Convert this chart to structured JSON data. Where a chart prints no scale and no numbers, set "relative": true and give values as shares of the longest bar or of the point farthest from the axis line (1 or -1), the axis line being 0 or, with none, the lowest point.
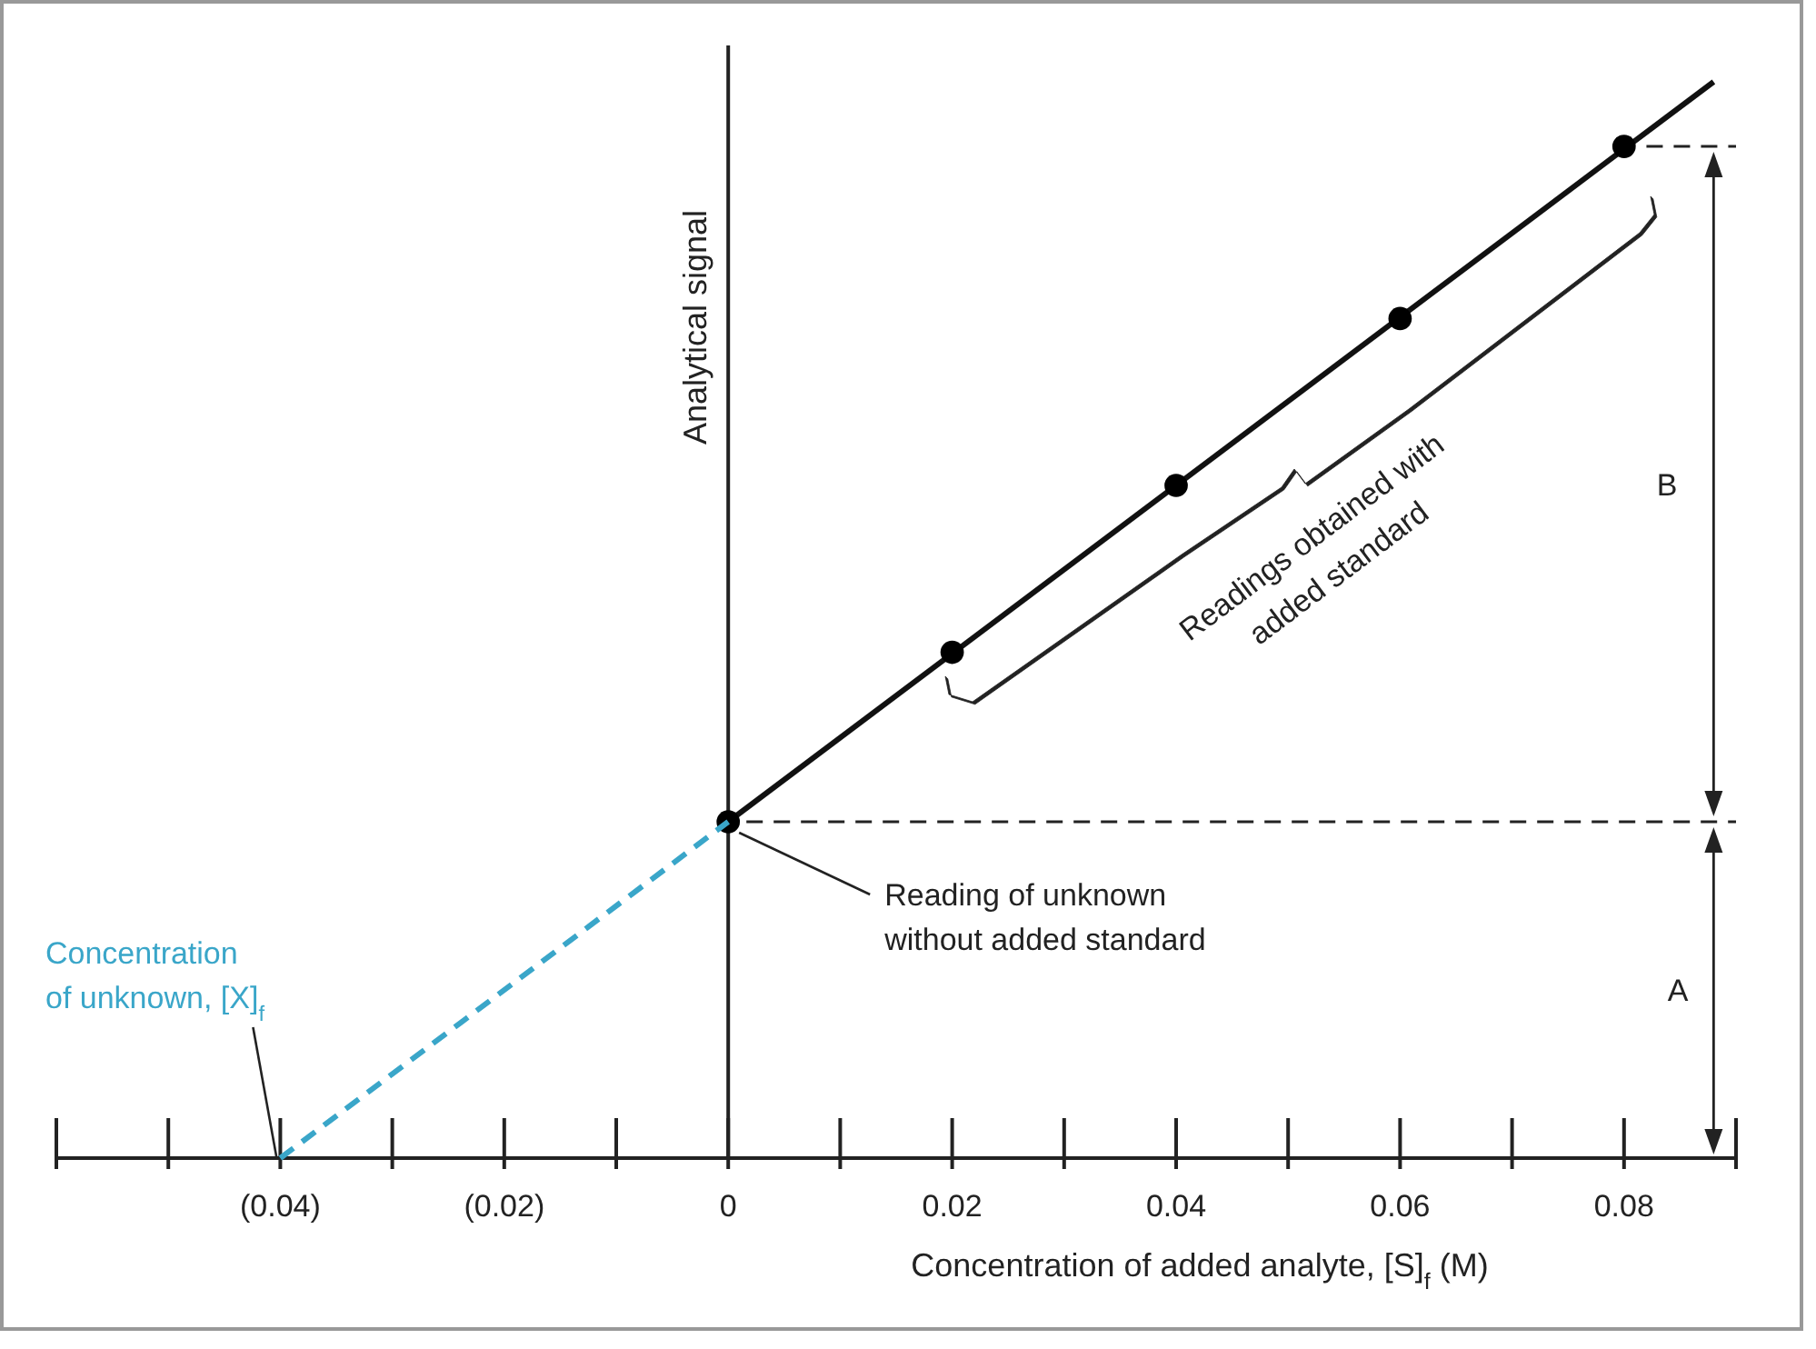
{
  "chart_data": {
    "type": "line",
    "relative": true,
    "xlabel": "Concentration of added analyte, [S]$_{f}$ (M)",
    "ylabel": "Analytical signal",
    "xlim": [
      -0.06,
      0.09
    ],
    "xticks": [
      {
        "value": -0.06,
        "label": null
      },
      {
        "value": -0.05,
        "label": null
      },
      {
        "value": -0.04,
        "label": "(0.04)"
      },
      {
        "value": -0.03,
        "label": null
      },
      {
        "value": -0.02,
        "label": "(0.02)"
      },
      {
        "value": -0.01,
        "label": null
      },
      0,
      {
        "value": 0.01,
        "label": null
      },
      0.02,
      {
        "value": 0.03,
        "label": null
      },
      0.04,
      {
        "value": 0.05,
        "label": null
      },
      0.06,
      {
        "value": 0.07,
        "label": null
      },
      0.08,
      {
        "value": 0.09,
        "label": null
      }
    ],
    "series": [
      {
        "color": "#111111",
        "line_style": "solid",
        "x": [
          0,
          0.088
        ],
        "values": [
          0.3125,
          1
        ]
      },
      {
        "type": "scatter",
        "color": "#000000",
        "marker": "circle",
        "x": [
          0,
          0.02,
          0.04,
          0.06,
          0.08
        ],
        "values": [
          0.3125,
          0.47,
          0.625,
          0.78,
          0.94
        ]
      },
      {
        "color": "#3aa6c9",
        "line_style": "dashed",
        "x": [
          -0.04,
          0
        ],
        "values": [
          0,
          0.3125
        ]
      },
      {
        "color": "#222222",
        "line_style": "dashed",
        "x": [
          0.082,
          0.09
        ],
        "values": [
          0.94,
          0.94
        ]
      }
    ],
    "ref_lines": [
      {
        "axis": "y",
        "value": 0.3125,
        "color": "#222222",
        "line_style": "dashed"
      }
    ],
    "annotations": [
      {
        "text": "Reading of unknown\nwithout added standard",
        "x": 0,
        "y": 0.3125
      },
      {
        "text": "Concentration\nof unknown, [X]$_{f}$",
        "x": -0.04,
        "y": 0
      },
      "Readings obtained with\nadded standard",
      "A",
      "B"
    ]
  }
}
